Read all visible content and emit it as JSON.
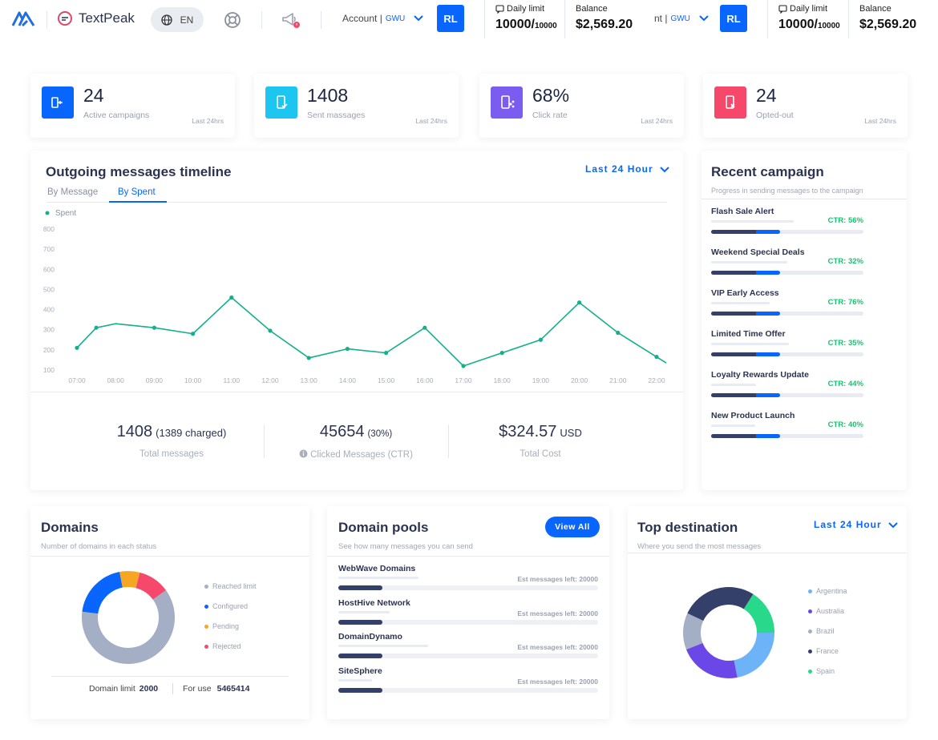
{
  "brand": {
    "name": "TextPeak"
  },
  "topbar": {
    "language": "EN",
    "account_label": "Account |",
    "account_value": "GWU",
    "account2_label": "nt |",
    "account2_value": "GWU",
    "avatar": "RL",
    "daily_limit_label": "Daily limit",
    "daily_limit_used": "10000/",
    "daily_limit_total": "10000",
    "balance_label": "Balance",
    "balance_value": "$2,569.20"
  },
  "stats": [
    {
      "value": "24",
      "label": "Active campaigns",
      "time": "Last 24hrs",
      "color": "#0866ff",
      "icon": "campaign-icon"
    },
    {
      "value": "1408",
      "label": "Sent massages",
      "time": "Last 24hrs",
      "color": "#1cc6f0",
      "icon": "sent-message-icon"
    },
    {
      "value": "68%",
      "label": "Click rate",
      "time": "Last 24hrs",
      "color": "#7b5cf0",
      "icon": "click-share-icon"
    },
    {
      "value": "24",
      "label": "Opted-out",
      "time": "Last 24hrs",
      "color": "#f5486b",
      "icon": "opted-out-icon"
    }
  ],
  "timeline": {
    "title": "Outgoing messages timeline",
    "range": "Last 24 Hour",
    "tabs": [
      "By Message",
      "By Spent"
    ],
    "active_tab": "By Spent",
    "totals": [
      {
        "value": "1408",
        "extra": "(1389 charged)",
        "label": "Total messages"
      },
      {
        "value": "45654",
        "extra": "(30%)",
        "label": "Clicked Messages (CTR)"
      },
      {
        "value": "$324.57",
        "extra": "USD",
        "label": "Total Cost"
      }
    ]
  },
  "chart_data": {
    "type": "line",
    "series": [
      {
        "name": "Spent",
        "color": "#13b08a",
        "values": [
          210,
          310,
          330,
          310,
          280,
          460,
          295,
          160,
          205,
          185,
          310,
          120,
          185,
          250,
          435,
          285,
          165,
          135
        ]
      }
    ],
    "x": [
      "07:00",
      "07:30",
      "08:00",
      "09:00",
      "10:00",
      "11:00",
      "12:00",
      "13:00",
      "14:00",
      "15:00",
      "16:00",
      "17:00",
      "18:00",
      "19:00",
      "20:00",
      "21:00",
      "22:00",
      "22:15"
    ],
    "xticks": [
      "07:00",
      "08:00",
      "09:00",
      "10:00",
      "11:00",
      "12:00",
      "13:00",
      "14:00",
      "15:00",
      "16:00",
      "17:00",
      "18:00",
      "19:00",
      "20:00",
      "21:00",
      "22:00"
    ],
    "yticks": [
      800,
      700,
      600,
      500,
      400,
      300,
      200,
      100
    ],
    "ylim": [
      100,
      800
    ],
    "grid": false,
    "legend": "top-left"
  },
  "recent": {
    "title": "Recent campaign",
    "subtitle": "Progress in sending messages to the campaign",
    "items": [
      {
        "name": "Flash Sale Alert",
        "ctr": "CTR: 56%",
        "sent": 0.45
      },
      {
        "name": "Weekend Special Deals",
        "ctr": "CTR: 32%",
        "sent": 0.45
      },
      {
        "name": "VIP Early Access",
        "ctr": "CTR: 76%",
        "sent": 0.45
      },
      {
        "name": "Limited Time Offer",
        "ctr": "CTR: 35%",
        "sent": 0.45
      },
      {
        "name": "Loyalty Rewards Update",
        "ctr": "CTR: 44%",
        "sent": 0.45
      },
      {
        "name": "New Product Launch",
        "ctr": "CTR: 40%",
        "sent": 0.45
      }
    ]
  },
  "domains": {
    "title": "Domains",
    "subtitle": "Number of domains in each status",
    "legend": [
      {
        "name": "Reached limit",
        "color": "#a4afc6",
        "value": 62
      },
      {
        "name": "Configured",
        "color": "#0866ff",
        "value": 20
      },
      {
        "name": "Pending",
        "color": "#f5a623",
        "value": 7
      },
      {
        "name": "Rejected",
        "color": "#f5486b",
        "value": 11
      }
    ],
    "limit_label": "Domain limit",
    "limit_value": "2000",
    "foruse_label": "For use",
    "foruse_value": "5465414"
  },
  "pools": {
    "title": "Domain pools",
    "subtitle": "See how many messages you can send",
    "view_all": "View All",
    "items": [
      {
        "name": "WebWave Domains",
        "est": "Est messages left: 20000",
        "fill": 0.17
      },
      {
        "name": "HostHive Network",
        "est": "Est messages left: 20000",
        "fill": 0.17
      },
      {
        "name": "DomainDynamo",
        "est": "Est messages left: 20000",
        "fill": 0.17
      },
      {
        "name": "SiteSphere",
        "est": "Est messages left: 20000",
        "fill": 0.17
      }
    ]
  },
  "destinations": {
    "title": "Top destination",
    "subtitle": "Where you send the most messages",
    "range": "Last 24 Hour",
    "legend": [
      {
        "name": "Argentina",
        "color": "#6db3f8",
        "value": 22
      },
      {
        "name": "Australia",
        "color": "#6c47e8",
        "value": 22
      },
      {
        "name": "Brazil",
        "color": "#a4afc6",
        "value": 13
      },
      {
        "name": "France",
        "color": "#34406a",
        "value": 27
      },
      {
        "name": "Spain",
        "color": "#28d98c",
        "value": 16
      }
    ]
  }
}
